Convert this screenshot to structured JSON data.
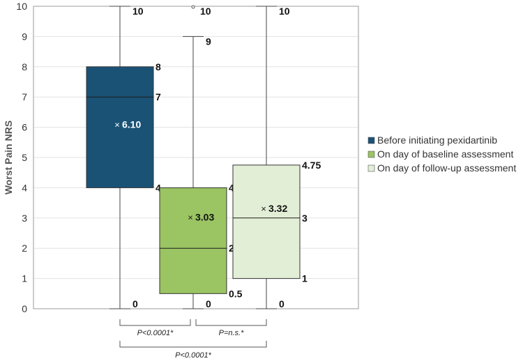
{
  "chart_data": {
    "type": "boxplot",
    "ylabel": "Worst Pain NRS",
    "ylim": [
      0,
      10
    ],
    "yticks": [
      0,
      1,
      2,
      3,
      4,
      5,
      6,
      7,
      8,
      9,
      10
    ],
    "grid": true,
    "legend_position": "right",
    "series": [
      {
        "name": "Before initiating pexidartinib",
        "color": "#1a5276",
        "min": 0,
        "q1": 4,
        "median": 7,
        "q3": 8,
        "max": 10,
        "mean": 6.1,
        "labels": {
          "min": "0",
          "q1": "4",
          "median": "7",
          "q3": "8",
          "max": "10",
          "mean": "6.10"
        }
      },
      {
        "name": "On day of baseline assessment",
        "color": "#9bc463",
        "min": 0,
        "q1": 0.5,
        "median": 2,
        "q3": 4,
        "max": 9,
        "outlier": 10,
        "mean": 3.03,
        "labels": {
          "min": "0",
          "q1": "0.5",
          "median": "2",
          "q3": "4",
          "max": "9",
          "outlier": "10",
          "mean": "3.03"
        }
      },
      {
        "name": "On day of follow-up assessment",
        "color": "#e3eed6",
        "min": 0,
        "q1": 1,
        "median": 3,
        "q3": 4.75,
        "max": 10,
        "mean": 3.32,
        "labels": {
          "min": "0",
          "q1": "1",
          "median": "3",
          "q3": "4.75",
          "max": "10",
          "mean": "3.32"
        }
      }
    ],
    "mean_marker": "×",
    "comparisons": [
      {
        "from": 0,
        "to": 1,
        "text": "P<0.0001*"
      },
      {
        "from": 1,
        "to": 2,
        "text": "P=n.s.*"
      },
      {
        "from": 0,
        "to": 2,
        "text": "P<0.0001*"
      }
    ]
  }
}
